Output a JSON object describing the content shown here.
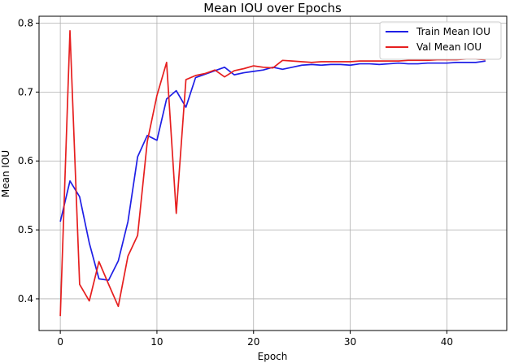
{
  "chart_data": {
    "type": "line",
    "title": "Mean IOU over Epochs",
    "xlabel": "Epoch",
    "ylabel": "Mean IOU",
    "xlim": [
      -2.2,
      46.2
    ],
    "ylim": [
      0.354,
      0.81
    ],
    "xticks": [
      0,
      10,
      20,
      30,
      40
    ],
    "yticks": [
      0.4,
      0.5,
      0.6,
      0.7,
      0.8
    ],
    "ytick_labels": [
      "0.4",
      "0.5",
      "0.6",
      "0.7",
      "0.8"
    ],
    "grid": true,
    "legend_position": "top-right",
    "x": [
      0,
      1,
      2,
      3,
      4,
      5,
      6,
      7,
      8,
      9,
      10,
      11,
      12,
      13,
      14,
      15,
      16,
      17,
      18,
      19,
      20,
      21,
      22,
      23,
      24,
      25,
      26,
      27,
      28,
      29,
      30,
      31,
      32,
      33,
      34,
      35,
      36,
      37,
      38,
      39,
      40,
      41,
      42,
      43,
      44
    ],
    "series": [
      {
        "name": "Train Mean IOU",
        "color": "#1f1fe6",
        "values": [
          0.512,
          0.571,
          0.548,
          0.481,
          0.429,
          0.427,
          0.455,
          0.512,
          0.606,
          0.637,
          0.63,
          0.69,
          0.702,
          0.678,
          0.721,
          0.726,
          0.731,
          0.736,
          0.725,
          0.728,
          0.73,
          0.732,
          0.736,
          0.733,
          0.736,
          0.739,
          0.74,
          0.739,
          0.74,
          0.74,
          0.739,
          0.741,
          0.741,
          0.74,
          0.741,
          0.742,
          0.741,
          0.741,
          0.742,
          0.742,
          0.742,
          0.743,
          0.743,
          0.743,
          0.745
        ]
      },
      {
        "name": "Val Mean IOU",
        "color": "#e61f1f",
        "values": [
          0.375,
          0.789,
          0.421,
          0.397,
          0.454,
          0.421,
          0.389,
          0.462,
          0.492,
          0.628,
          0.695,
          0.743,
          0.524,
          0.718,
          0.724,
          0.727,
          0.732,
          0.722,
          0.731,
          0.734,
          0.738,
          0.736,
          0.735,
          0.746,
          0.745,
          0.744,
          0.743,
          0.744,
          0.744,
          0.744,
          0.744,
          0.745,
          0.745,
          0.745,
          0.745,
          0.745,
          0.746,
          0.746,
          0.746,
          0.747,
          0.747,
          0.747,
          0.748,
          0.748,
          0.747
        ]
      }
    ]
  }
}
